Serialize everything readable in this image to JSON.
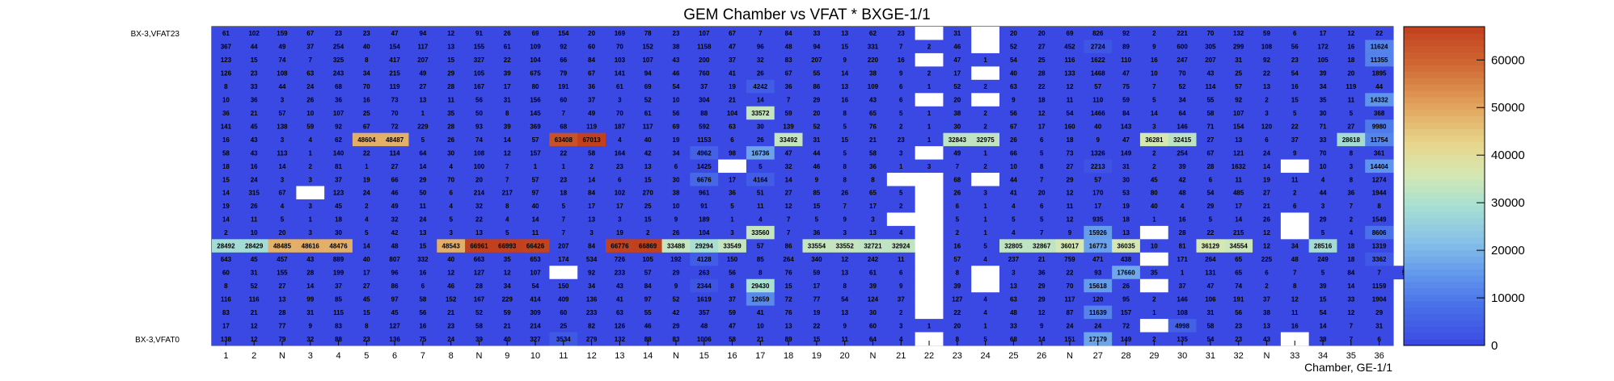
{
  "chart_data": {
    "type": "heatmap",
    "title": "GEM Chamber vs VFAT * BXGE-1/1",
    "xlabel": "Chamber, GE-1/1",
    "x_tick_labels": [
      "1",
      "2",
      "N",
      "3",
      "4",
      "5",
      "6",
      "7",
      "8",
      "N",
      "9",
      "10",
      "11",
      "12",
      "13",
      "14",
      "N",
      "15",
      "16",
      "17",
      "18",
      "19",
      "20",
      "N",
      "21",
      "22",
      "23",
      "24",
      "25",
      "26",
      "N",
      "27",
      "28",
      "29",
      "30",
      "31",
      "32",
      "N",
      "33",
      "34",
      "35",
      "36"
    ],
    "y_tick_labels": [
      "BX-3,VFAT23",
      "BX-3,VFAT0"
    ],
    "palette_ticks": [
      "0",
      "10000",
      "20000",
      "30000",
      "40000",
      "50000",
      "60000"
    ],
    "zlim": [
      0,
      67000
    ],
    "colors": {
      "low": "#3a49e3",
      "mid": "#a8e0ca",
      "high": "#c2401d",
      "empty": "#ffffff"
    },
    "rows": [
      [
        61,
        102,
        159,
        67,
        23,
        23,
        47,
        94,
        12,
        91,
        26,
        69,
        154,
        20,
        169,
        78,
        23,
        107,
        67,
        7,
        84,
        33,
        13,
        62,
        23,
        "",
        31,
        "",
        20,
        20,
        69,
        826,
        92,
        2,
        221,
        70,
        132,
        59,
        6,
        17,
        12,
        22
      ],
      [
        367,
        44,
        49,
        37,
        254,
        40,
        154,
        117,
        13,
        155,
        61,
        109,
        92,
        60,
        70,
        152,
        38,
        1158,
        47,
        96,
        48,
        94,
        15,
        331,
        7,
        2,
        46,
        "",
        52,
        27,
        452,
        2724,
        89,
        9,
        600,
        305,
        299,
        108,
        56,
        172,
        16,
        11624
      ],
      [
        123,
        15,
        74,
        7,
        325,
        8,
        417,
        207,
        15,
        327,
        22,
        104,
        66,
        84,
        103,
        107,
        43,
        200,
        37,
        32,
        83,
        207,
        9,
        220,
        16,
        "",
        47,
        1,
        54,
        25,
        116,
        1622,
        110,
        16,
        247,
        207,
        31,
        92,
        23,
        105,
        18,
        11355
      ],
      [
        126,
        23,
        108,
        63,
        243,
        34,
        215,
        49,
        29,
        105,
        39,
        675,
        79,
        67,
        141,
        94,
        46,
        760,
        41,
        26,
        67,
        55,
        14,
        38,
        9,
        2,
        17,
        "",
        40,
        28,
        133,
        1468,
        47,
        10,
        70,
        43,
        25,
        22,
        54,
        39,
        20,
        1895
      ],
      [
        8,
        33,
        44,
        24,
        68,
        70,
        119,
        27,
        28,
        167,
        17,
        80,
        191,
        36,
        61,
        69,
        54,
        37,
        19,
        4242,
        36,
        86,
        13,
        109,
        6,
        1,
        52,
        2,
        63,
        22,
        12,
        57,
        75,
        7,
        52,
        114,
        57,
        13,
        16,
        34,
        119,
        44
      ],
      [
        10,
        36,
        3,
        26,
        36,
        16,
        73,
        13,
        11,
        56,
        31,
        156,
        60,
        37,
        3,
        52,
        10,
        304,
        21,
        14,
        7,
        29,
        16,
        43,
        6,
        "",
        20,
        "",
        9,
        18,
        11,
        110,
        59,
        5,
        34,
        55,
        92,
        2,
        15,
        35,
        11,
        14332
      ],
      [
        36,
        21,
        57,
        10,
        107,
        25,
        70,
        1,
        35,
        50,
        8,
        145,
        7,
        49,
        70,
        61,
        56,
        88,
        104,
        33572,
        59,
        20,
        8,
        65,
        5,
        1,
        38,
        2,
        56,
        12,
        54,
        1466,
        84,
        14,
        64,
        58,
        107,
        3,
        5,
        30,
        5,
        368
      ],
      [
        141,
        45,
        138,
        59,
        92,
        67,
        72,
        229,
        28,
        93,
        39,
        369,
        68,
        119,
        187,
        117,
        69,
        592,
        63,
        30,
        139,
        52,
        5,
        76,
        2,
        1,
        30,
        2,
        67,
        17,
        160,
        40,
        143,
        3,
        146,
        71,
        154,
        120,
        22,
        71,
        27,
        9980
      ],
      [
        16,
        43,
        3,
        4,
        62,
        48604,
        48487,
        5,
        26,
        74,
        14,
        57,
        63408,
        67013,
        4,
        40,
        19,
        1153,
        6,
        26,
        33492,
        31,
        15,
        21,
        23,
        1,
        32843,
        32975,
        26,
        6,
        18,
        9,
        47,
        36281,
        32415,
        27,
        13,
        6,
        37,
        33,
        28618,
        11754
      ],
      [
        58,
        43,
        113,
        1,
        140,
        22,
        114,
        64,
        30,
        108,
        12,
        157,
        22,
        58,
        164,
        42,
        34,
        4962,
        98,
        16736,
        47,
        44,
        5,
        58,
        3,
        "",
        49,
        1,
        66,
        5,
        73,
        1326,
        149,
        2,
        254,
        67,
        121,
        24,
        9,
        70,
        8,
        361
      ],
      [
        18,
        16,
        14,
        2,
        81,
        1,
        27,
        14,
        4,
        100,
        7,
        1,
        1,
        2,
        23,
        13,
        6,
        1425,
        "",
        5,
        32,
        46,
        8,
        36,
        1,
        3,
        7,
        2,
        10,
        8,
        27,
        2213,
        31,
        2,
        39,
        28,
        1632,
        14,
        "",
        10,
        3,
        14404
      ],
      [
        15,
        24,
        3,
        3,
        37,
        19,
        66,
        29,
        70,
        20,
        7,
        57,
        23,
        14,
        6,
        15,
        30,
        6676,
        17,
        4164,
        14,
        9,
        8,
        8,
        "",
        "",
        68,
        "",
        44,
        7,
        29,
        57,
        30,
        45,
        42,
        6,
        11,
        19,
        11,
        4,
        8,
        1274
      ],
      [
        14,
        315,
        67,
        "",
        123,
        24,
        46,
        50,
        6,
        214,
        217,
        97,
        18,
        84,
        102,
        270,
        38,
        961,
        36,
        51,
        27,
        85,
        26,
        65,
        5,
        "",
        26,
        3,
        41,
        20,
        12,
        170,
        53,
        80,
        48,
        54,
        485,
        27,
        2,
        44,
        36,
        1944
      ],
      [
        19,
        26,
        4,
        3,
        45,
        2,
        49,
        11,
        4,
        32,
        8,
        40,
        5,
        17,
        17,
        25,
        10,
        91,
        5,
        11,
        12,
        15,
        7,
        17,
        2,
        "",
        6,
        1,
        4,
        6,
        11,
        17,
        19,
        40,
        4,
        29,
        17,
        21,
        6,
        3,
        7,
        8
      ],
      [
        14,
        11,
        5,
        1,
        18,
        4,
        32,
        24,
        5,
        22,
        4,
        14,
        7,
        13,
        3,
        15,
        9,
        189,
        1,
        4,
        7,
        5,
        9,
        3,
        "",
        "",
        5,
        1,
        5,
        5,
        12,
        935,
        18,
        1,
        16,
        5,
        14,
        26,
        "",
        29,
        2,
        1549
      ],
      [
        2,
        10,
        20,
        3,
        30,
        5,
        42,
        13,
        3,
        13,
        5,
        11,
        7,
        3,
        19,
        2,
        26,
        104,
        3,
        33560,
        7,
        36,
        3,
        13,
        4,
        "",
        2,
        1,
        4,
        7,
        9,
        15926,
        13,
        "",
        28,
        22,
        215,
        12,
        "",
        5,
        4,
        8606
      ],
      [
        28492,
        28429,
        48485,
        48616,
        48476,
        14,
        48,
        15,
        48543,
        66961,
        66993,
        66426,
        207,
        84,
        66776,
        66869,
        33488,
        29294,
        33549,
        57,
        86,
        33554,
        33552,
        32721,
        32924,
        "",
        16,
        5,
        32805,
        32867,
        36017,
        16773,
        36035,
        10,
        81,
        36129,
        34554,
        12,
        34,
        28516,
        18,
        1319
      ],
      [
        643,
        45,
        457,
        43,
        889,
        40,
        807,
        332,
        40,
        663,
        35,
        653,
        174,
        534,
        726,
        105,
        192,
        4128,
        150,
        85,
        264,
        340,
        12,
        242,
        11,
        "",
        57,
        4,
        237,
        21,
        759,
        471,
        438,
        "",
        171,
        264,
        65,
        225,
        48,
        249,
        18,
        3362
      ],
      [
        60,
        31,
        155,
        28,
        199,
        17,
        96,
        16,
        12,
        127,
        12,
        107,
        "",
        92,
        233,
        57,
        29,
        263,
        56,
        8,
        76,
        59,
        13,
        61,
        6,
        "",
        8,
        "",
        3,
        36,
        22,
        93,
        17660,
        35,
        1,
        131,
        65,
        6,
        7,
        5,
        84,
        7,
        511
      ],
      [
        8,
        52,
        27,
        14,
        37,
        27,
        86,
        6,
        46,
        28,
        34,
        54,
        150,
        34,
        43,
        84,
        9,
        2344,
        8,
        29430,
        15,
        17,
        8,
        39,
        9,
        "",
        39,
        "",
        13,
        29,
        70,
        15618,
        26,
        "",
        37,
        47,
        74,
        2,
        8,
        39,
        14,
        1159
      ],
      [
        116,
        116,
        13,
        99,
        85,
        45,
        97,
        58,
        152,
        167,
        229,
        414,
        409,
        136,
        41,
        97,
        52,
        1619,
        37,
        12659,
        72,
        77,
        54,
        124,
        37,
        "",
        127,
        4,
        63,
        29,
        117,
        120,
        95,
        2,
        146,
        106,
        191,
        37,
        12,
        15,
        33,
        1904
      ],
      [
        83,
        21,
        28,
        31,
        115,
        15,
        45,
        56,
        21,
        52,
        59,
        309,
        60,
        233,
        63,
        55,
        42,
        357,
        59,
        41,
        76,
        19,
        13,
        30,
        2,
        "",
        22,
        4,
        48,
        12,
        87,
        11639,
        157,
        1,
        108,
        31,
        56,
        38,
        11,
        54,
        12,
        29
      ],
      [
        17,
        12,
        77,
        9,
        83,
        8,
        127,
        16,
        23,
        58,
        21,
        214,
        25,
        82,
        126,
        46,
        29,
        48,
        47,
        10,
        13,
        22,
        9,
        60,
        3,
        1,
        20,
        1,
        33,
        9,
        24,
        24,
        72,
        "",
        4998,
        58,
        23,
        13,
        16,
        14,
        7,
        31
      ],
      [
        138,
        12,
        79,
        32,
        88,
        23,
        136,
        75,
        24,
        39,
        40,
        327,
        3534,
        279,
        132,
        88,
        83,
        1006,
        58,
        21,
        89,
        15,
        11,
        64,
        4,
        "",
        8,
        5,
        68,
        14,
        151,
        17179,
        149,
        2,
        135,
        54,
        23,
        43,
        "",
        38,
        7,
        6
      ]
    ]
  }
}
